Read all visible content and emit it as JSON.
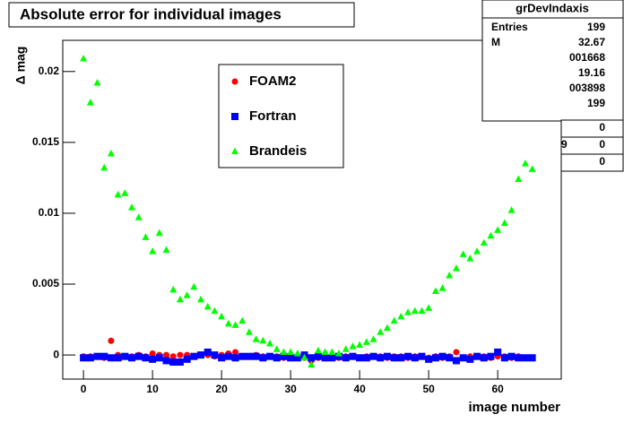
{
  "chart_data": {
    "type": "scatter",
    "title": "Absolute error for individual images",
    "x_label": "image number",
    "y_label": "Δ mag",
    "xlim": [
      -3,
      69.2
    ],
    "xticks": [
      0,
      10,
      20,
      30,
      40,
      50,
      60
    ],
    "ylim": [
      -0.0017,
      0.0222
    ],
    "yticks": [
      0,
      0.005,
      0.01,
      0.015,
      0.02
    ],
    "x": [
      0,
      1,
      2,
      3,
      4,
      5,
      6,
      7,
      8,
      9,
      10,
      11,
      12,
      13,
      14,
      15,
      16,
      17,
      18,
      19,
      20,
      21,
      22,
      23,
      24,
      25,
      26,
      27,
      28,
      29,
      30,
      31,
      32,
      33,
      34,
      35,
      36,
      37,
      38,
      39,
      40,
      41,
      42,
      43,
      44,
      45,
      46,
      47,
      48,
      49,
      50,
      51,
      52,
      53,
      54,
      55,
      56,
      57,
      58,
      59,
      60,
      61,
      62,
      63,
      64,
      65
    ],
    "series": [
      {
        "name": "FOAM2",
        "color": "#ff0000",
        "marker": "circle",
        "values": [
          -0.0001,
          -0.0001,
          -0.0001,
          -0.0002,
          0.001,
          0,
          -0.0001,
          -0.0001,
          0,
          -0.0001,
          0.0001,
          0,
          0,
          -0.0001,
          0,
          0,
          -0.0001,
          0,
          0,
          -0.0001,
          0,
          0.0001,
          0.0002,
          -0.0001,
          -0.0001,
          0,
          -0.0001,
          -0.0001,
          -0.0001,
          -0.0002,
          -0.0001,
          -0.0001,
          -0.0002,
          -0.0004,
          -0.0002,
          -0.0001,
          -0.0001,
          -0.0002,
          -0.0001,
          -0.0001,
          -0.0002,
          -0.0001,
          -0.0001,
          -0.0001,
          -0.0002,
          -0.0001,
          -0.0001,
          -0.0002,
          -0.0001,
          -0.0001,
          -0.0002,
          -0.0001,
          -0.0002,
          -0.0001,
          0.0002,
          -0.0002,
          -0.0001,
          -0.0001,
          -0.0001,
          -0.0002,
          -0.0001,
          -0.0001,
          -0.0002,
          -0.0001,
          -0.0002,
          -0.0002
        ]
      },
      {
        "name": "Fortran",
        "color": "#0000ff",
        "marker": "square",
        "values": [
          -0.0002,
          -0.0002,
          -0.0001,
          -0.0001,
          -0.0002,
          -0.0002,
          -0.0001,
          -0.0002,
          -0.0001,
          -0.0002,
          -0.0003,
          -0.0002,
          -0.0004,
          -0.0005,
          -0.0005,
          -0.0003,
          -0.0001,
          0,
          0.0002,
          0,
          -0.0002,
          -0.0001,
          -0.0002,
          -0.0001,
          -0.0001,
          -0.0001,
          -0.0002,
          -0.0001,
          -0.0002,
          -0.0001,
          -0.0002,
          -0.0002,
          0,
          -0.0002,
          -0.0001,
          -0.0002,
          -0.0002,
          -0.0001,
          -0.0002,
          -0.0001,
          -0.0002,
          -0.0002,
          -0.0001,
          -0.0002,
          -0.0001,
          -0.0002,
          -0.0002,
          -0.0001,
          -0.0002,
          -0.0001,
          -0.0003,
          -0.0002,
          -0.0001,
          -0.0002,
          -0.0004,
          -0.0002,
          -0.0003,
          -0.0001,
          -0.0002,
          -0.0001,
          0.0002,
          -0.0002,
          -0.0001,
          -0.0002,
          -0.0002,
          -0.0002
        ]
      },
      {
        "name": "Brandeis",
        "color": "#00ff00",
        "marker": "triangle",
        "values": [
          0.0209,
          0.0178,
          0.0192,
          0.0132,
          0.0142,
          0.0113,
          0.0114,
          0.0104,
          0.0097,
          0.0083,
          0.0073,
          0.0086,
          0.0074,
          0.0046,
          0.0039,
          0.0042,
          0.0048,
          0.0039,
          0.0034,
          0.0031,
          0.0027,
          0.0022,
          0.0021,
          0.0024,
          0.0016,
          0.0011,
          0.001,
          0.0008,
          0.0004,
          0.0002,
          0.0002,
          0.0001,
          -0.0002,
          -0.0007,
          0.0003,
          0.0002,
          0.0002,
          0.0001,
          0.0004,
          0.0006,
          0.0007,
          0.0009,
          0.0011,
          0.0016,
          0.0019,
          0.0024,
          0.0027,
          0.003,
          0.0031,
          0.0031,
          0.0033,
          0.0045,
          0.0047,
          0.0056,
          0.0061,
          0.0071,
          0.0068,
          0.0073,
          0.0079,
          0.0084,
          0.0088,
          0.0093,
          0.0102,
          0.0124,
          0.0135,
          0.0131
        ]
      }
    ],
    "stats": {
      "title": "grDevIndaxis",
      "rows": [
        {
          "label": "Entries",
          "value": "199"
        },
        {
          "label": "M",
          "value": "32.67"
        },
        {
          "value": "001668"
        },
        {
          "value": "19.16"
        },
        {
          "value": "003898"
        },
        {
          "value": "199"
        },
        {
          "value": "0"
        },
        {
          "label": "9",
          "value": "0"
        },
        {
          "value": "0"
        }
      ]
    }
  }
}
